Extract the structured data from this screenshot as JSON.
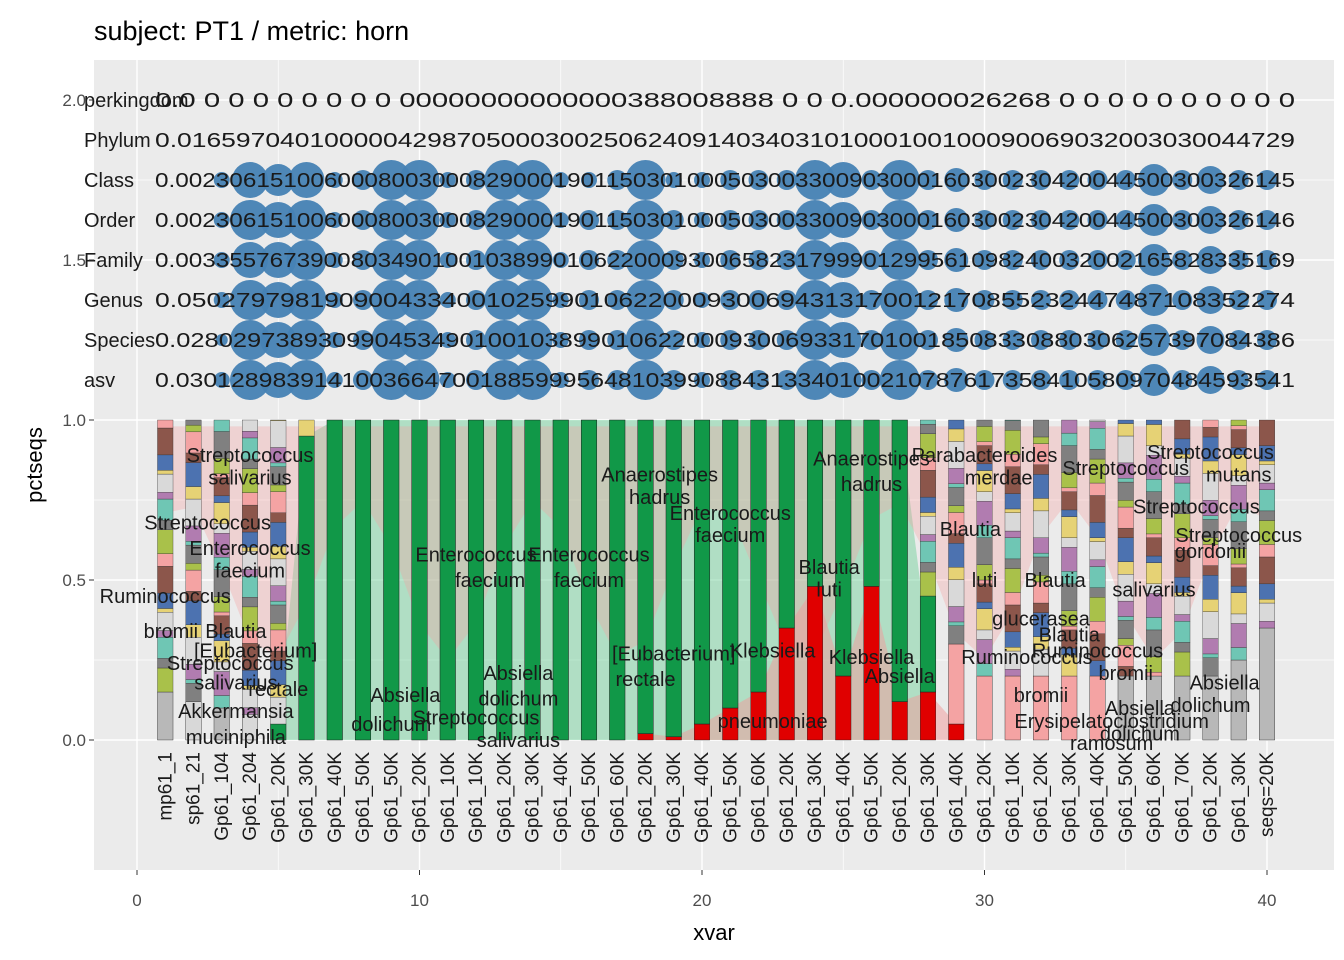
{
  "chart_data": {
    "type": "bar",
    "title": "subject: PT1 / metric: horn",
    "xlabel": "xvar",
    "ylabel": "pctseqs",
    "xlim": [
      0,
      40
    ],
    "ylim": [
      0,
      2
    ],
    "x_ticks": [
      0,
      10,
      20,
      30,
      40
    ],
    "y_ticks": [
      0.0,
      0.5,
      1.0,
      1.5,
      2.0
    ],
    "y_tick_labels": [
      "0.0",
      "0.5",
      "1.0",
      "1.5",
      "2.0"
    ],
    "x_tick_labels": [
      "0",
      "10",
      "20",
      "30",
      "40"
    ],
    "grid": true,
    "legend": "none",
    "bar_count": 40,
    "x_category_labels": [
      "mp61_1",
      "sp61_21",
      "Gp61_104",
      "Gp61_204",
      "Gp61_20K",
      "Gp61_30K",
      "Gp61_40K",
      "Gp61_50K",
      "Gp61_50K",
      "Gp61_20K",
      "Gp61_10K",
      "Gp61_10K",
      "Gp61_20K",
      "Gp61_30K",
      "Gp61_40K",
      "Gp61_50K",
      "Gp61_60K",
      "Gp61_20K",
      "Gp61_30K",
      "Gp61_40K",
      "Gp61_50K",
      "Gp61_60K",
      "Gp61_20K",
      "Gp61_30K",
      "Gp61_40K",
      "Gp61_50K",
      "Gp61_20K",
      "Gp61_30K",
      "Gp61_40K",
      "Gp61_20K",
      "Gp61_10K",
      "Gp61_20K",
      "Gp61_30K",
      "Gp61_40K",
      "Gp61_50K",
      "Gp61_60K",
      "Gp61_70K",
      "Gp61_20K",
      "Gp61_30K",
      "seqs=20K"
    ],
    "rank_rows": [
      {
        "label": "perkingdom",
        "y": 2.0
      },
      {
        "label": "Phylum",
        "y": 1.875
      },
      {
        "label": "Class",
        "y": 1.75
      },
      {
        "label": "Order",
        "y": 1.625
      },
      {
        "label": "Family",
        "y": 1.5
      },
      {
        "label": "Genus",
        "y": 1.375
      },
      {
        "label": "Species",
        "y": 1.25
      },
      {
        "label": "asv",
        "y": 1.125
      }
    ],
    "rank_text_strings": [
      "0.0 0   0 0 0 0 0 0 0 00000000000000388008888  0   0  0.000000026268  0  0  0  0  0  0  0  0  0  0",
      "0.0165970401000004298705000300250624091403403101000100100090069032003030044729",
      "0.00230615100600080030008290001901150301000503003300903000160300230420044500300326145",
      "0.00230615100600080030008290001901150301000503003300903000160300230420044500300326146",
      "0.00335576739008034901001038990106220009300658231799901299561098240032002165828335169",
      "0.0502797981909004334001025990106220009300694313170012170855232447487108352274",
      "0.0280297389309904534901001038990106220009300693317010018508330880306257397084386",
      "0.030128983914100366470018859995648103990884313340100210787617358410580970484593541"
    ],
    "bubble_values": [
      {
        "x": 1,
        "rows": [
          0.0,
          0.0,
          0.0,
          0.0,
          0.0,
          0.0,
          0.0
        ]
      },
      {
        "x": 2,
        "rows": [
          0.0,
          0.0,
          0.0,
          0.0,
          0.0,
          0.0,
          0.0
        ]
      },
      {
        "x": 3,
        "rows": [
          0.0,
          0.2,
          0.2,
          0.2,
          0.2,
          0.1,
          0.2
        ]
      },
      {
        "x": 4,
        "rows": [
          0.0,
          0.7,
          0.8,
          0.7,
          0.8,
          0.8,
          0.8
        ]
      },
      {
        "x": 5,
        "rows": [
          0.0,
          0.6,
          0.7,
          0.7,
          0.7,
          0.7,
          0.7
        ]
      },
      {
        "x": 6,
        "rows": [
          0.0,
          0.7,
          0.8,
          0.8,
          0.8,
          0.8,
          0.8
        ]
      },
      {
        "x": 7,
        "rows": [
          0.0,
          0.2,
          0.2,
          0.2,
          0.2,
          0.2,
          0.2
        ]
      },
      {
        "x": 8,
        "rows": [
          0.0,
          0.3,
          0.3,
          0.3,
          0.3,
          0.3,
          0.3
        ]
      },
      {
        "x": 9,
        "rows": [
          0.0,
          0.8,
          0.8,
          0.8,
          0.8,
          0.8,
          0.8
        ]
      },
      {
        "x": 10,
        "rows": [
          0.0,
          0.8,
          0.8,
          0.8,
          0.8,
          0.8,
          0.8
        ]
      },
      {
        "x": 11,
        "rows": [
          0.0,
          0.2,
          0.2,
          0.2,
          0.2,
          0.2,
          0.2
        ]
      },
      {
        "x": 12,
        "rows": [
          0.0,
          0.3,
          0.3,
          0.3,
          0.3,
          0.3,
          0.3
        ]
      },
      {
        "x": 13,
        "rows": [
          0.0,
          0.8,
          0.8,
          0.8,
          0.8,
          0.8,
          0.8
        ]
      },
      {
        "x": 14,
        "rows": [
          0.0,
          0.8,
          0.8,
          0.8,
          0.8,
          0.8,
          0.8
        ]
      },
      {
        "x": 15,
        "rows": [
          0.0,
          0.2,
          0.2,
          0.2,
          0.2,
          0.2,
          0.2
        ]
      },
      {
        "x": 16,
        "rows": [
          0.0,
          0.2,
          0.3,
          0.3,
          0.3,
          0.3,
          0.3
        ]
      },
      {
        "x": 17,
        "rows": [
          0.0,
          0.3,
          0.3,
          0.3,
          0.3,
          0.3,
          0.3
        ]
      },
      {
        "x": 18,
        "rows": [
          0.0,
          0.8,
          0.8,
          0.8,
          0.8,
          0.8,
          0.8
        ]
      },
      {
        "x": 19,
        "rows": [
          0.0,
          0.2,
          0.3,
          0.3,
          0.3,
          0.3,
          0.3
        ]
      },
      {
        "x": 20,
        "rows": [
          0.0,
          0.2,
          0.2,
          0.2,
          0.2,
          0.2,
          0.2
        ]
      },
      {
        "x": 21,
        "rows": [
          0.0,
          0.3,
          0.3,
          0.3,
          0.3,
          0.3,
          0.3
        ]
      },
      {
        "x": 22,
        "rows": [
          0.0,
          0.3,
          0.3,
          0.3,
          0.3,
          0.3,
          0.3
        ]
      },
      {
        "x": 23,
        "rows": [
          0.0,
          0.3,
          0.3,
          0.3,
          0.3,
          0.3,
          0.3
        ]
      },
      {
        "x": 24,
        "rows": [
          0.0,
          0.8,
          0.8,
          0.8,
          0.8,
          0.8,
          0.8
        ]
      },
      {
        "x": 25,
        "rows": [
          0.0,
          0.7,
          0.7,
          0.7,
          0.7,
          0.7,
          0.7
        ]
      },
      {
        "x": 26,
        "rows": [
          0.0,
          0.3,
          0.3,
          0.3,
          0.3,
          0.3,
          0.3
        ]
      },
      {
        "x": 27,
        "rows": [
          0.0,
          0.8,
          0.8,
          0.8,
          0.8,
          0.8,
          0.8
        ]
      },
      {
        "x": 28,
        "rows": [
          0.0,
          0.3,
          0.3,
          0.3,
          0.3,
          0.3,
          0.3
        ]
      },
      {
        "x": 29,
        "rows": [
          0.0,
          0.4,
          0.4,
          0.4,
          0.4,
          0.4,
          0.4
        ]
      },
      {
        "x": 30,
        "rows": [
          0.0,
          0.3,
          0.3,
          0.3,
          0.3,
          0.3,
          0.3
        ]
      },
      {
        "x": 31,
        "rows": [
          0.0,
          0.3,
          0.3,
          0.3,
          0.3,
          0.3,
          0.3
        ]
      },
      {
        "x": 32,
        "rows": [
          0.0,
          0.3,
          0.3,
          0.3,
          0.3,
          0.3,
          0.3
        ]
      },
      {
        "x": 33,
        "rows": [
          0.0,
          0.3,
          0.3,
          0.3,
          0.3,
          0.3,
          0.3
        ]
      },
      {
        "x": 34,
        "rows": [
          0.0,
          0.3,
          0.3,
          0.3,
          0.3,
          0.3,
          0.3
        ]
      },
      {
        "x": 35,
        "rows": [
          0.0,
          0.3,
          0.3,
          0.3,
          0.3,
          0.3,
          0.3
        ]
      },
      {
        "x": 36,
        "rows": [
          0.0,
          0.6,
          0.6,
          0.6,
          0.6,
          0.6,
          0.6
        ]
      },
      {
        "x": 37,
        "rows": [
          0.0,
          0.3,
          0.3,
          0.3,
          0.3,
          0.3,
          0.3
        ]
      },
      {
        "x": 38,
        "rows": [
          0.0,
          0.5,
          0.5,
          0.5,
          0.5,
          0.5,
          0.5
        ]
      },
      {
        "x": 39,
        "rows": [
          0.0,
          0.3,
          0.3,
          0.3,
          0.3,
          0.3,
          0.3
        ]
      },
      {
        "x": 40,
        "rows": [
          0.0,
          0.3,
          0.3,
          0.3,
          0.3,
          0.3,
          0.3
        ]
      }
    ],
    "dominant_segments": [
      {
        "x": 1,
        "color": "#b8b8b8",
        "value": 0.15
      },
      {
        "x": 2,
        "color": "#d8d8d8",
        "value": 0.12
      },
      {
        "x": 3,
        "color": "#b8b8b8",
        "value": 0.1
      },
      {
        "x": 4,
        "color": "#d8d8d8",
        "value": 0.08
      },
      {
        "x": 5,
        "color": "#009e4f",
        "value": 0.05
      },
      {
        "x": 6,
        "color": "#009e4f",
        "value": 0.95
      },
      {
        "x": 7,
        "color": "#009e4f",
        "value": 1.0
      },
      {
        "x": 8,
        "color": "#009e4f",
        "value": 1.0
      },
      {
        "x": 9,
        "color": "#009e4f",
        "value": 1.0
      },
      {
        "x": 10,
        "color": "#009e4f",
        "value": 1.0
      },
      {
        "x": 11,
        "color": "#009e4f",
        "value": 1.0
      },
      {
        "x": 12,
        "color": "#009e4f",
        "value": 1.0
      },
      {
        "x": 13,
        "color": "#009e4f",
        "value": 1.0
      },
      {
        "x": 14,
        "color": "#009e4f",
        "value": 1.0
      },
      {
        "x": 15,
        "color": "#009e4f",
        "value": 1.0
      },
      {
        "x": 16,
        "color": "#009e4f",
        "value": 1.0
      },
      {
        "x": 17,
        "color": "#009e4f",
        "value": 1.0
      },
      {
        "x": 18,
        "color": "#009e4f",
        "value": 1.0
      },
      {
        "x": 19,
        "color": "#009e4f",
        "value": 1.0
      },
      {
        "x": 20,
        "color": "#009e4f",
        "value": 1.0
      },
      {
        "x": 21,
        "color": "#009e4f",
        "value": 1.0
      },
      {
        "x": 22,
        "color": "#009e4f",
        "value": 1.0
      },
      {
        "x": 23,
        "color": "#009e4f",
        "value": 1.0
      },
      {
        "x": 24,
        "color": "#009e4f",
        "value": 1.0
      },
      {
        "x": 25,
        "color": "#009e4f",
        "value": 1.0
      },
      {
        "x": 26,
        "color": "#009e4f",
        "value": 1.0
      },
      {
        "x": 27,
        "color": "#009e4f",
        "value": 1.0
      },
      {
        "x": 28,
        "color": "#009e4f",
        "value": 0.3
      },
      {
        "x": 29,
        "color": "#f4a3a3",
        "value": 0.25
      },
      {
        "x": 30,
        "color": "#f4a3a3",
        "value": 0.2
      },
      {
        "x": 31,
        "color": "#f4a3a3",
        "value": 0.2
      },
      {
        "x": 32,
        "color": "#f4a3a3",
        "value": 0.2
      },
      {
        "x": 33,
        "color": "#f4a3a3",
        "value": 0.2
      },
      {
        "x": 34,
        "color": "#f4a3a3",
        "value": 0.2
      },
      {
        "x": 35,
        "color": "#b8b8b8",
        "value": 0.2
      },
      {
        "x": 36,
        "color": "#b8b8b8",
        "value": 0.2
      },
      {
        "x": 37,
        "color": "#b8b8b8",
        "value": 0.2
      },
      {
        "x": 38,
        "color": "#b8b8b8",
        "value": 0.2
      },
      {
        "x": 39,
        "color": "#b8b8b8",
        "value": 0.25
      },
      {
        "x": 40,
        "color": "#b8b8b8",
        "value": 0.35
      }
    ],
    "red_segments": [
      {
        "x": 18,
        "value": 0.02
      },
      {
        "x": 19,
        "value": 0.01
      },
      {
        "x": 20,
        "value": 0.05
      },
      {
        "x": 21,
        "value": 0.1
      },
      {
        "x": 22,
        "value": 0.15
      },
      {
        "x": 23,
        "value": 0.35
      },
      {
        "x": 24,
        "value": 0.48
      },
      {
        "x": 25,
        "value": 0.2
      },
      {
        "x": 26,
        "value": 0.48
      },
      {
        "x": 27,
        "value": 0.12
      },
      {
        "x": 28,
        "value": 0.15
      },
      {
        "x": 29,
        "value": 0.05
      }
    ],
    "annotations": [
      {
        "text": "Streptococcus",
        "x": 4,
        "y": 0.89
      },
      {
        "text": "salivarius",
        "x": 4,
        "y": 0.82
      },
      {
        "text": "Streptococcus",
        "x": 2.5,
        "y": 0.68
      },
      {
        "text": "Enterococcus",
        "x": 4,
        "y": 0.6
      },
      {
        "text": "faecium",
        "x": 4,
        "y": 0.53
      },
      {
        "text": "Ruminococcus",
        "x": 1,
        "y": 0.45
      },
      {
        "text": "bromii",
        "x": 1.2,
        "y": 0.34
      },
      {
        "text": "Blautia",
        "x": 3.5,
        "y": 0.34
      },
      {
        "text": "Streptococcus",
        "x": 3.3,
        "y": 0.24
      },
      {
        "text": "[Eubacterium]",
        "x": 4.2,
        "y": 0.28
      },
      {
        "text": "salivarius",
        "x": 3.5,
        "y": 0.18
      },
      {
        "text": "rectale",
        "x": 5,
        "y": 0.16
      },
      {
        "text": "Akkermansia",
        "x": 3.5,
        "y": 0.09
      },
      {
        "text": "muciniphila",
        "x": 3.5,
        "y": 0.01
      },
      {
        "text": "Absiella",
        "x": 9.5,
        "y": 0.14
      },
      {
        "text": "dolichum",
        "x": 9,
        "y": 0.05
      },
      {
        "text": "Streptococcus",
        "x": 12,
        "y": 0.07
      },
      {
        "text": "salivarius",
        "x": 13.5,
        "y": 0.0
      },
      {
        "text": "Absiella",
        "x": 13.5,
        "y": 0.21
      },
      {
        "text": "dolichum",
        "x": 13.5,
        "y": 0.13
      },
      {
        "text": "Enterococcus",
        "x": 12,
        "y": 0.58
      },
      {
        "text": "faecium",
        "x": 12.5,
        "y": 0.5
      },
      {
        "text": "Anaerostipes",
        "x": 18.5,
        "y": 0.83
      },
      {
        "text": "hadrus",
        "x": 18.5,
        "y": 0.76
      },
      {
        "text": "Enterococcus",
        "x": 21,
        "y": 0.71
      },
      {
        "text": "faecium",
        "x": 21,
        "y": 0.64
      },
      {
        "text": "Enterococcus",
        "x": 16,
        "y": 0.58
      },
      {
        "text": "faecium",
        "x": 16,
        "y": 0.5
      },
      {
        "text": "[Eubacterium]",
        "x": 19,
        "y": 0.27
      },
      {
        "text": "rectale",
        "x": 18,
        "y": 0.19
      },
      {
        "text": "Klebsiella",
        "x": 22.5,
        "y": 0.28
      },
      {
        "text": "pneumoniae",
        "x": 22.5,
        "y": 0.06
      },
      {
        "text": "Anaerostipes",
        "x": 26,
        "y": 0.88
      },
      {
        "text": "hadrus",
        "x": 26,
        "y": 0.8
      },
      {
        "text": "Blautia",
        "x": 24.5,
        "y": 0.54
      },
      {
        "text": "luti",
        "x": 24.5,
        "y": 0.47
      },
      {
        "text": "Klebsiella",
        "x": 26,
        "y": 0.26
      },
      {
        "text": "Absiella",
        "x": 27,
        "y": 0.2
      },
      {
        "text": "Parabacteroides",
        "x": 30,
        "y": 0.89
      },
      {
        "text": "merdae",
        "x": 30.5,
        "y": 0.82
      },
      {
        "text": "Blautia",
        "x": 29.5,
        "y": 0.66
      },
      {
        "text": "luti",
        "x": 30,
        "y": 0.5
      },
      {
        "text": "Blautia",
        "x": 32.5,
        "y": 0.5
      },
      {
        "text": "glucerasea",
        "x": 32,
        "y": 0.38
      },
      {
        "text": "Ruminococcus",
        "x": 31.5,
        "y": 0.26
      },
      {
        "text": "bromii",
        "x": 32,
        "y": 0.14
      },
      {
        "text": "Blautia",
        "x": 33,
        "y": 0.33
      },
      {
        "text": "Ruminococcus",
        "x": 34,
        "y": 0.28
      },
      {
        "text": "bromii",
        "x": 35,
        "y": 0.21
      },
      {
        "text": "Streptococcus",
        "x": 35,
        "y": 0.85
      },
      {
        "text": "Streptococcus",
        "x": 37.5,
        "y": 0.73
      },
      {
        "text": "salivarius",
        "x": 36,
        "y": 0.47
      },
      {
        "text": "Streptococcus",
        "x": 38,
        "y": 0.9
      },
      {
        "text": "mutans",
        "x": 39,
        "y": 0.83
      },
      {
        "text": "Streptococcus",
        "x": 39,
        "y": 0.64
      },
      {
        "text": "gordonii",
        "x": 38,
        "y": 0.59
      },
      {
        "text": "Absiella",
        "x": 38.5,
        "y": 0.18
      },
      {
        "text": "dolichum",
        "x": 38,
        "y": 0.11
      },
      {
        "text": "Absiella",
        "x": 35.5,
        "y": 0.1
      },
      {
        "text": "dolichum",
        "x": 35.5,
        "y": 0.02
      },
      {
        "text": "ramosum",
        "x": 34.5,
        "y": -0.01
      },
      {
        "text": "Erysipelatoclostridium",
        "x": 34.5,
        "y": 0.06
      }
    ]
  }
}
